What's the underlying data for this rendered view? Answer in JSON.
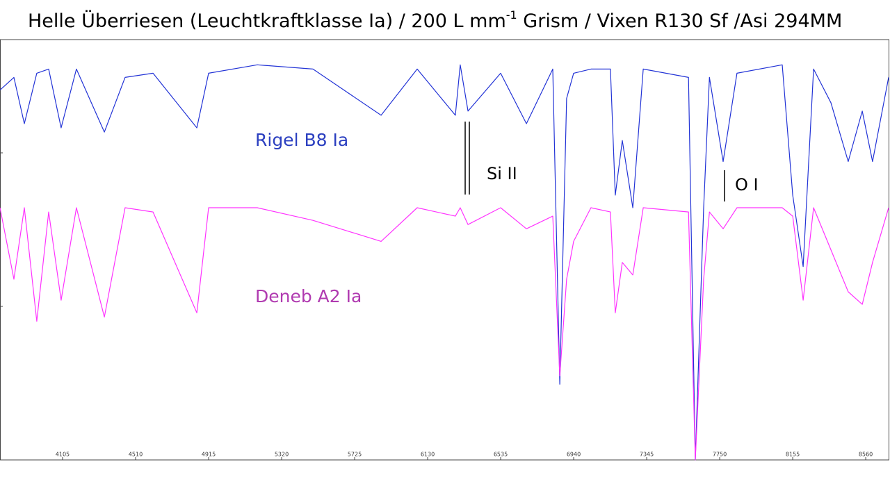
{
  "chart_data": {
    "type": "line",
    "title": {
      "main": "Helle Überriesen (Leuchtkraftklasse Ia) / 200 L mm",
      "sup": "-1",
      "rest": " Grism / Vixen R130 Sf /Asi 294MM"
    },
    "x": [
      3758,
      3835,
      3893,
      3962,
      4028,
      4097,
      4182,
      4337,
      4452,
      4607,
      4850,
      4915,
      5185,
      5494,
      5872,
      6072,
      6284,
      6311,
      6354,
      6535,
      6678,
      6824,
      6863,
      6901,
      6940,
      7036,
      7144,
      7171,
      7210,
      7268,
      7326,
      7577,
      7615,
      7661,
      7693,
      7769,
      7846,
      8097,
      8155,
      8213,
      8271,
      8367,
      8463,
      8541,
      8598,
      8687
    ],
    "series": [
      {
        "name": "Rigel B8 Ia",
        "color": "#2233d6",
        "label_color": "#2b3fc0",
        "values": [
          0.88,
          0.91,
          0.8,
          0.92,
          0.93,
          0.79,
          0.93,
          0.78,
          0.91,
          0.92,
          0.79,
          0.92,
          0.94,
          0.93,
          0.82,
          0.93,
          0.82,
          0.94,
          0.83,
          0.92,
          0.8,
          0.93,
          0.18,
          0.86,
          0.92,
          0.93,
          0.93,
          0.63,
          0.76,
          0.6,
          0.93,
          0.91,
          0,
          0.6,
          0.91,
          0.71,
          0.92,
          0.94,
          0.63,
          0.46,
          0.93,
          0.85,
          0.71,
          0.83,
          0.71,
          0.91
        ]
      },
      {
        "name": "Deneb A2 Ia",
        "color": "#ff33ff",
        "label_color": "#b03ab0",
        "values": [
          0.6,
          0.43,
          0.6,
          0.33,
          0.59,
          0.38,
          0.6,
          0.34,
          0.6,
          0.59,
          0.35,
          0.6,
          0.6,
          0.57,
          0.52,
          0.6,
          0.58,
          0.6,
          0.56,
          0.6,
          0.55,
          0.58,
          0.2,
          0.43,
          0.52,
          0.6,
          0.59,
          0.35,
          0.47,
          0.44,
          0.6,
          0.59,
          0,
          0.43,
          0.59,
          0.55,
          0.6,
          0.6,
          0.58,
          0.38,
          0.6,
          0.5,
          0.4,
          0.37,
          0.47,
          0.6
        ]
      }
    ],
    "annotations": [
      "Si II",
      "O I"
    ],
    "xlim": [
      3758,
      8687
    ],
    "ylim": [
      0,
      1
    ],
    "xticks": [
      4105,
      4510,
      4915,
      5320,
      5725,
      6130,
      6535,
      6940,
      7345,
      7750,
      8155,
      8560
    ]
  }
}
